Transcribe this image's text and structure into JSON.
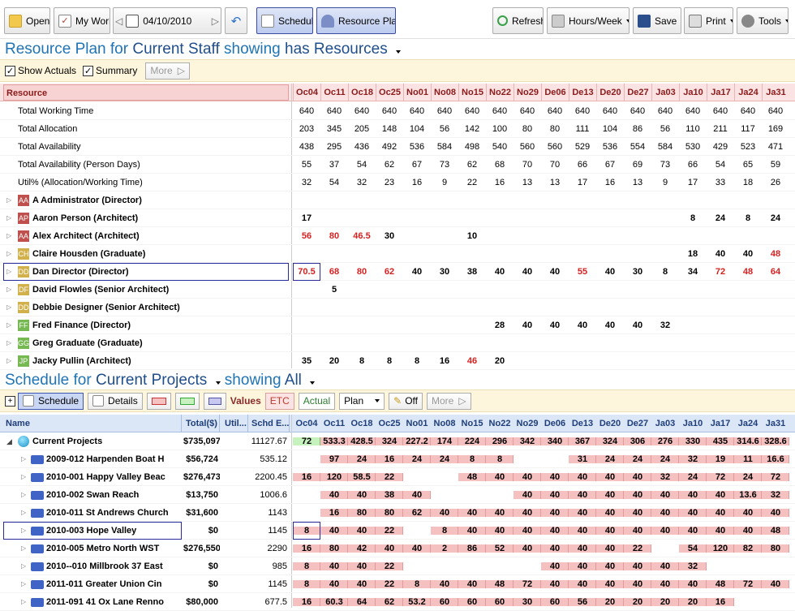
{
  "toolbar": {
    "open": "Open",
    "mywork": "My Work",
    "date": "04/10/2010",
    "schedule": "Schedule",
    "resource_plan": "Resource Plan",
    "refresh": "Refresh",
    "hours": "Hours/Week",
    "save": "Save",
    "print": "Print",
    "tools": "Tools"
  },
  "rp": {
    "t1": "Resource Plan for ",
    "t2": "Current Staff",
    "t3": " showing ",
    "t4": "has Resources",
    "show_actuals": "Show Actuals",
    "summary": "Summary",
    "more": "More",
    "col_resource": "Resource"
  },
  "weeks": [
    "Oc04",
    "Oc11",
    "Oc18",
    "Oc25",
    "No01",
    "No08",
    "No15",
    "No22",
    "No29",
    "De06",
    "De13",
    "De20",
    "De27",
    "Ja03",
    "Ja10",
    "Ja17",
    "Ja24",
    "Ja31"
  ],
  "totals": [
    {
      "label": "Total Working Time",
      "v": [
        "640",
        "640",
        "640",
        "640",
        "640",
        "640",
        "640",
        "640",
        "640",
        "640",
        "640",
        "640",
        "640",
        "640",
        "640",
        "640",
        "640",
        "640"
      ]
    },
    {
      "label": "Total Allocation",
      "v": [
        "203",
        "345",
        "205",
        "148",
        "104",
        "56",
        "142",
        "100",
        "80",
        "80",
        "111",
        "104",
        "86",
        "56",
        "110",
        "211",
        "117",
        "169"
      ]
    },
    {
      "label": "Total Availability",
      "v": [
        "438",
        "295",
        "436",
        "492",
        "536",
        "584",
        "498",
        "540",
        "560",
        "560",
        "529",
        "536",
        "554",
        "584",
        "530",
        "429",
        "523",
        "471"
      ]
    },
    {
      "label": "Total Availability (Person Days)",
      "v": [
        "55",
        "37",
        "54",
        "62",
        "67",
        "73",
        "62",
        "68",
        "70",
        "70",
        "66",
        "67",
        "69",
        "73",
        "66",
        "54",
        "65",
        "59"
      ]
    },
    {
      "label": "Util% (Allocation/Working Time)",
      "v": [
        "32",
        "54",
        "32",
        "23",
        "16",
        "9",
        "22",
        "16",
        "13",
        "13",
        "17",
        "16",
        "13",
        "9",
        "17",
        "33",
        "18",
        "26"
      ]
    }
  ],
  "people": [
    {
      "ini": "AA",
      "color": "#c0504d",
      "name": "A Administrator (Director)",
      "v": [
        "",
        "",
        "",
        "",
        "",
        "",
        "",
        "",
        "",
        "",
        "",
        "",
        "",
        "",
        "",
        "",
        "",
        ""
      ],
      "red": []
    },
    {
      "ini": "AP",
      "color": "#c0504d",
      "name": "Aaron Person (Architect)",
      "v": [
        "17",
        "",
        "",
        "",
        "",
        "",
        "",
        "",
        "",
        "",
        "",
        "",
        "",
        "",
        "8",
        "24",
        "8",
        "24"
      ],
      "red": []
    },
    {
      "ini": "AA",
      "color": "#c0504d",
      "name": "Alex Architect (Architect)",
      "v": [
        "56",
        "80",
        "46.5",
        "30",
        "",
        "",
        "10",
        "",
        "",
        "",
        "",
        "",
        "",
        "",
        "",
        "",
        "",
        ""
      ],
      "red": [
        0,
        1,
        2
      ]
    },
    {
      "ini": "CH",
      "color": "#d2b04c",
      "name": "Claire Housden (Graduate)",
      "v": [
        "",
        "",
        "",
        "",
        "",
        "",
        "",
        "",
        "",
        "",
        "",
        "",
        "",
        "",
        "18",
        "40",
        "40",
        "48"
      ],
      "red": [
        17
      ]
    },
    {
      "ini": "DD",
      "color": "#d2b04c",
      "name": "Dan Director (Director)",
      "v": [
        "70.5",
        "68",
        "80",
        "62",
        "40",
        "30",
        "38",
        "40",
        "40",
        "40",
        "55",
        "40",
        "30",
        "8",
        "34",
        "72",
        "48",
        "64"
      ],
      "red": [
        0,
        1,
        2,
        3,
        10,
        15,
        16,
        17
      ]
    },
    {
      "ini": "DF",
      "color": "#d2b04c",
      "name": "David Flowles (Senior Architect)",
      "v": [
        "",
        "5",
        "",
        "",
        "",
        "",
        "",
        "",
        "",
        "",
        "",
        "",
        "",
        "",
        "",
        "",
        "",
        ""
      ],
      "red": []
    },
    {
      "ini": "DD",
      "color": "#d2b04c",
      "name": "Debbie Designer (Senior Architect)",
      "v": [
        "",
        "",
        "",
        "",
        "",
        "",
        "",
        "",
        "",
        "",
        "",
        "",
        "",
        "",
        "",
        "",
        "",
        ""
      ],
      "red": []
    },
    {
      "ini": "FF",
      "color": "#76b852",
      "name": "Fred Finance (Director)",
      "v": [
        "",
        "",
        "",
        "",
        "",
        "",
        "",
        "28",
        "40",
        "40",
        "40",
        "40",
        "40",
        "32",
        "",
        "",
        "",
        ""
      ],
      "red": []
    },
    {
      "ini": "GG",
      "color": "#76b852",
      "name": "Greg Graduate (Graduate)",
      "v": [
        "",
        "",
        "",
        "",
        "",
        "",
        "",
        "",
        "",
        "",
        "",
        "",
        "",
        "",
        "",
        "",
        "",
        ""
      ],
      "red": []
    },
    {
      "ini": "JP",
      "color": "#76b852",
      "name": "Jacky Pullin (Architect)",
      "v": [
        "35",
        "20",
        "8",
        "8",
        "8",
        "16",
        "46",
        "20",
        "",
        "",
        "",
        "",
        "",
        "",
        "",
        "",
        "",
        ""
      ],
      "red": [
        6
      ]
    }
  ],
  "sched": {
    "t1": "Schedule for ",
    "t2": "Current Projects",
    "t3": " showing ",
    "t4": "All",
    "schedule": "Schedule",
    "details": "Details",
    "values": "Values",
    "etc": "ETC",
    "actual": "Actual",
    "plan": "Plan",
    "off": "Off",
    "more": "More",
    "col_name": "Name",
    "col_total": "Total($)",
    "col_util": "Util...",
    "col_schd": "Schd E..."
  },
  "projects": [
    {
      "name": "Current Projects",
      "total": "$735,097",
      "util": "",
      "schd": "11127.67",
      "v": [
        "72",
        "533.3",
        "428.5",
        "324",
        "227.2",
        "174",
        "224",
        "296",
        "342",
        "340",
        "367",
        "324",
        "306",
        "276",
        "330",
        "435",
        "314.6",
        "328.6"
      ]
    },
    {
      "name": "2009-012 Harpenden Boat H",
      "total": "$56,724",
      "util": "",
      "schd": "535.12",
      "v": [
        "",
        "97",
        "24",
        "16",
        "24",
        "24",
        "8",
        "8",
        "",
        "",
        "31",
        "24",
        "24",
        "24",
        "32",
        "19",
        "11",
        "16.6"
      ]
    },
    {
      "name": "2010-001 Happy Valley Beac",
      "total": "$276,473",
      "util": "",
      "schd": "2200.45",
      "v": [
        "16",
        "120",
        "58.5",
        "22",
        "",
        "",
        "48",
        "40",
        "40",
        "40",
        "40",
        "40",
        "40",
        "32",
        "24",
        "72",
        "24",
        "72"
      ]
    },
    {
      "name": "2010-002 Swan Reach",
      "total": "$13,750",
      "util": "",
      "schd": "1006.6",
      "v": [
        "",
        "40",
        "40",
        "38",
        "40",
        "",
        "",
        "",
        "40",
        "40",
        "40",
        "40",
        "40",
        "40",
        "40",
        "40",
        "13.6",
        "32"
      ]
    },
    {
      "name": "2010-011 St Andrews Church",
      "total": "$31,600",
      "util": "",
      "schd": "1143",
      "v": [
        "",
        "16",
        "80",
        "80",
        "62",
        "40",
        "40",
        "40",
        "40",
        "40",
        "40",
        "40",
        "40",
        "40",
        "40",
        "40",
        "40",
        "40"
      ]
    },
    {
      "name": "2010-003 Hope Valley",
      "total": "$0",
      "util": "",
      "schd": "1145",
      "v": [
        "8",
        "40",
        "40",
        "22",
        "",
        "8",
        "40",
        "40",
        "40",
        "40",
        "40",
        "40",
        "40",
        "40",
        "40",
        "40",
        "40",
        "48"
      ]
    },
    {
      "name": "2010-005 Metro North WST",
      "total": "$276,550",
      "util": "",
      "schd": "2290",
      "v": [
        "16",
        "80",
        "42",
        "40",
        "40",
        "2",
        "86",
        "52",
        "40",
        "40",
        "40",
        "40",
        "22",
        "",
        "54",
        "120",
        "82",
        "80"
      ]
    },
    {
      "name": "2010--010 Millbrook 37 East",
      "total": "$0",
      "util": "",
      "schd": "985",
      "v": [
        "8",
        "40",
        "40",
        "22",
        "",
        "",
        "",
        "",
        "",
        "40",
        "40",
        "40",
        "40",
        "40",
        "32",
        "",
        "",
        ""
      ]
    },
    {
      "name": "2011-011 Greater Union Cin",
      "total": "$0",
      "util": "",
      "schd": "1145",
      "v": [
        "8",
        "40",
        "40",
        "22",
        "8",
        "40",
        "40",
        "48",
        "72",
        "40",
        "40",
        "40",
        "40",
        "40",
        "40",
        "48",
        "72",
        "40"
      ]
    },
    {
      "name": "2011-091 41 Ox Lane Renno",
      "total": "$80,000",
      "util": "",
      "schd": "677.5",
      "v": [
        "16",
        "60.3",
        "64",
        "62",
        "53.2",
        "60",
        "60",
        "60",
        "30",
        "60",
        "56",
        "20",
        "20",
        "20",
        "20",
        "16",
        "",
        ""
      ]
    }
  ]
}
